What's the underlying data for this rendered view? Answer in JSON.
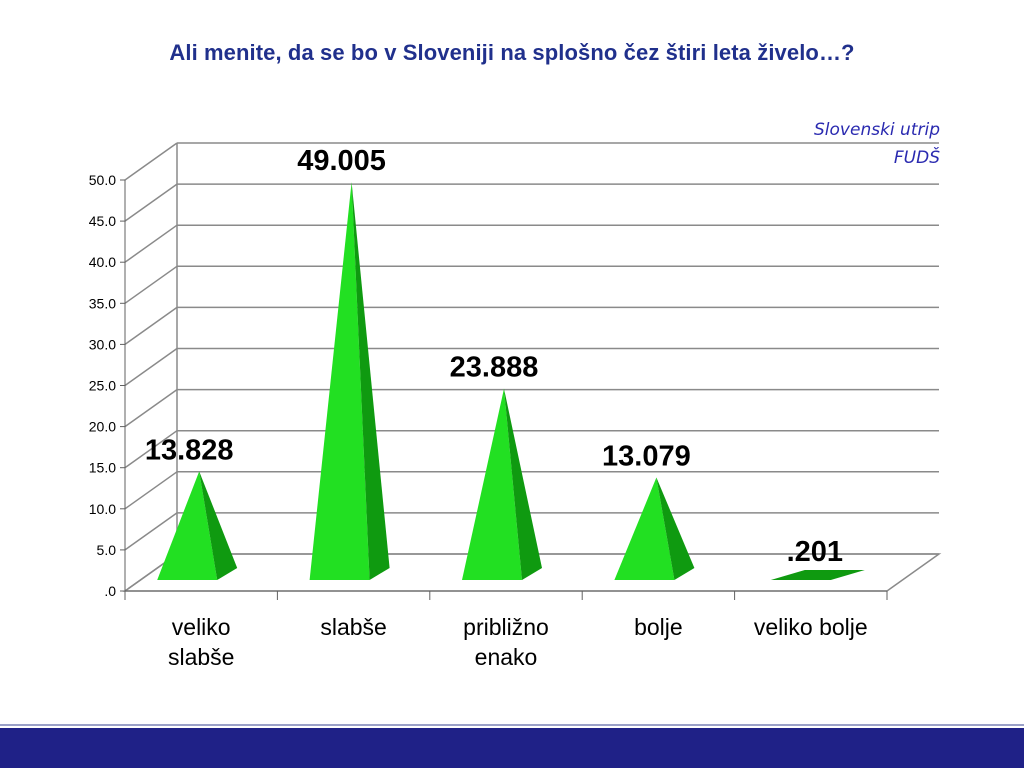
{
  "title": "Ali menite, da se bo v Sloveniji na splošno čez štiri leta živelo…?",
  "source": {
    "line1": "Slovenski utrip",
    "line2": "FUDŠ"
  },
  "colors": {
    "title": "#20308c",
    "source": "#2a2ab0",
    "bar_light": "#22e022",
    "bar_dark": "#0f9a10",
    "grid": "#8a8a8a",
    "footer": "#1f2187"
  },
  "chart_data": {
    "type": "bar",
    "shape": "pyramid",
    "categories": [
      "veliko\nslabše",
      "slabše",
      "približno\nenako",
      "bolje",
      "veliko bolje"
    ],
    "values": [
      13.828,
      49.005,
      23.888,
      13.079,
      0.201
    ],
    "value_labels": [
      "13.828",
      "49.005",
      "23.888",
      "13.079",
      ".201"
    ],
    "y_ticks": [
      ".0",
      "5.0",
      "10.0",
      "15.0",
      "20.0",
      "25.0",
      "30.0",
      "35.0",
      "40.0",
      "45.0",
      "50.0"
    ],
    "ylim": [
      0,
      50
    ],
    "grid": true,
    "legend": "none"
  }
}
